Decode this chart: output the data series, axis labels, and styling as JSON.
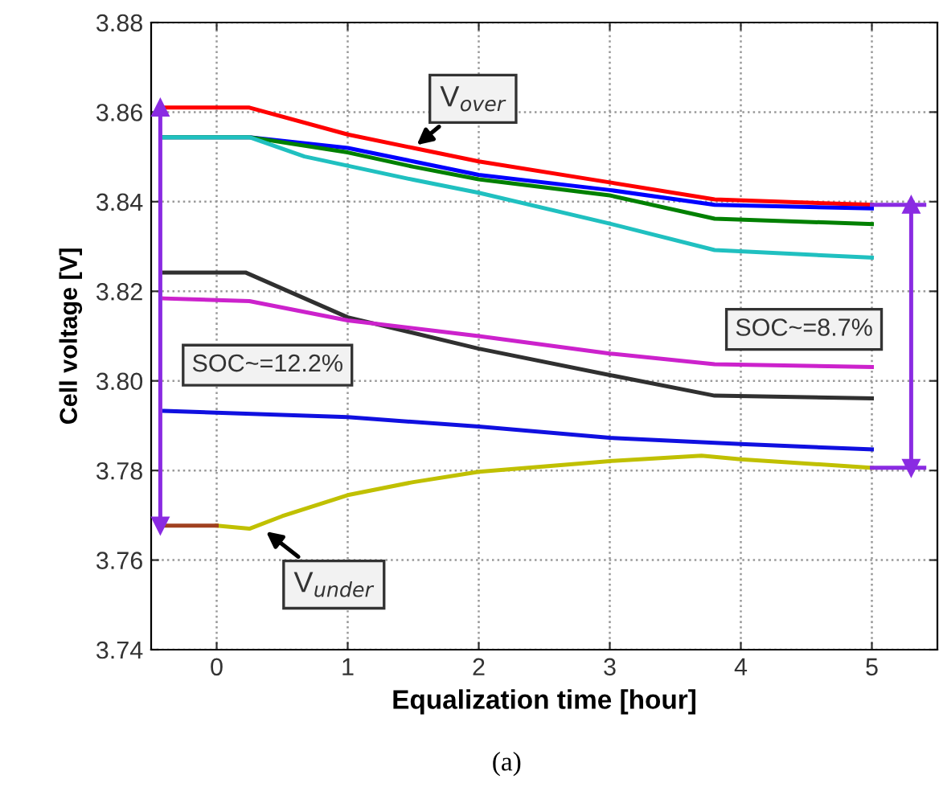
{
  "chart_data": {
    "type": "line",
    "xlabel": "Equalization time [hour]",
    "ylabel": "Cell voltage [V]",
    "xlim": [
      -0.5,
      5.5
    ],
    "xticks": [
      0,
      1,
      2,
      3,
      4,
      5
    ],
    "ylim": [
      3.74,
      3.88
    ],
    "yticks": [
      3.74,
      3.76,
      3.78,
      {
        "value": 3.8,
        "label": "3.80"
      },
      3.82,
      3.84,
      3.86,
      3.88
    ],
    "grid": true,
    "line_style": "solid",
    "series": [
      {
        "color": "#ff0000",
        "x": [
          -0.4,
          0.25,
          1,
          1.5,
          2,
          3,
          3.8,
          5
        ],
        "values": [
          3.861,
          3.861,
          3.855,
          3.852,
          3.849,
          3.8443,
          3.8405,
          3.8393
        ]
      },
      {
        "color": "#0000ff",
        "x": [
          -0.4,
          0.25,
          1,
          1.5,
          2,
          3,
          3.8,
          5
        ],
        "values": [
          3.8544,
          3.8544,
          3.852,
          3.849,
          3.846,
          3.8426,
          3.8393,
          3.8385
        ]
      },
      {
        "color": "#008000",
        "x": [
          -0.4,
          0.25,
          1,
          1.5,
          2,
          3,
          3.8,
          5
        ],
        "values": [
          3.8544,
          3.8544,
          3.851,
          3.8478,
          3.845,
          3.8414,
          3.8362,
          3.835
        ]
      },
      {
        "color": "#20c0c0",
        "x": [
          -0.4,
          0.25,
          0.67,
          1.5,
          2,
          3,
          3.8,
          5
        ],
        "values": [
          3.8544,
          3.8544,
          3.8501,
          3.8449,
          3.842,
          3.8351,
          3.8292,
          3.8275
        ]
      },
      {
        "color": "#303030",
        "x": [
          -0.4,
          0.22,
          1,
          2,
          3,
          3.8,
          5
        ],
        "values": [
          3.8242,
          3.8242,
          3.8142,
          3.8072,
          3.8013,
          3.7967,
          3.7961
        ]
      },
      {
        "color": "#cc22cc",
        "x": [
          -0.4,
          0.25,
          1,
          2,
          3,
          3.8,
          5
        ],
        "values": [
          3.8184,
          3.8178,
          3.8135,
          3.81,
          3.8061,
          3.8037,
          3.8031
        ]
      },
      {
        "color": "#1010e0",
        "x": [
          -0.4,
          1,
          2,
          3,
          4,
          5
        ],
        "values": [
          3.7933,
          3.7919,
          3.7898,
          3.7873,
          3.7859,
          3.7847
        ]
      },
      {
        "color": "#c0c000",
        "x": [
          0,
          0.25,
          0.5,
          1,
          1.5,
          2,
          3,
          3.7,
          4,
          5
        ],
        "values": [
          3.7677,
          3.767,
          3.7698,
          3.7745,
          3.7774,
          3.7797,
          3.7821,
          3.7833,
          3.7825,
          3.7806
        ]
      },
      {
        "color": "#a04020",
        "x": [
          -0.4,
          0
        ],
        "values": [
          3.7677,
          3.7677
        ]
      },
      {
        "color": "#8a2be2",
        "x": [
          -0.43,
          -0.43
        ],
        "values": [
          3.861,
          3.7677
        ],
        "marker": "triangle"
      },
      {
        "color": "#8a2be2",
        "x": [
          5.3,
          5.3
        ],
        "values": [
          3.8393,
          3.7806
        ],
        "marker": "triangle"
      },
      {
        "color": "#8a2be2",
        "x": [
          5.0,
          5.4
        ],
        "values": [
          3.8393,
          3.8393
        ]
      },
      {
        "color": "#8a2be2",
        "x": [
          5.0,
          5.4
        ],
        "values": [
          3.7806,
          3.7806
        ]
      }
    ],
    "annotations": [
      {
        "text": "V$_{over}$",
        "x": 1.5,
        "y": 3.852
      },
      {
        "text": "V$_{under}$",
        "x": 0.35,
        "y": 3.767
      },
      {
        "text": "SOC~=12.2%",
        "x": -0.43,
        "y": 3.8035
      },
      {
        "text": "SOC~=8.7%",
        "x": 5.3,
        "y": 3.8115
      },
      "(a)"
    ]
  }
}
